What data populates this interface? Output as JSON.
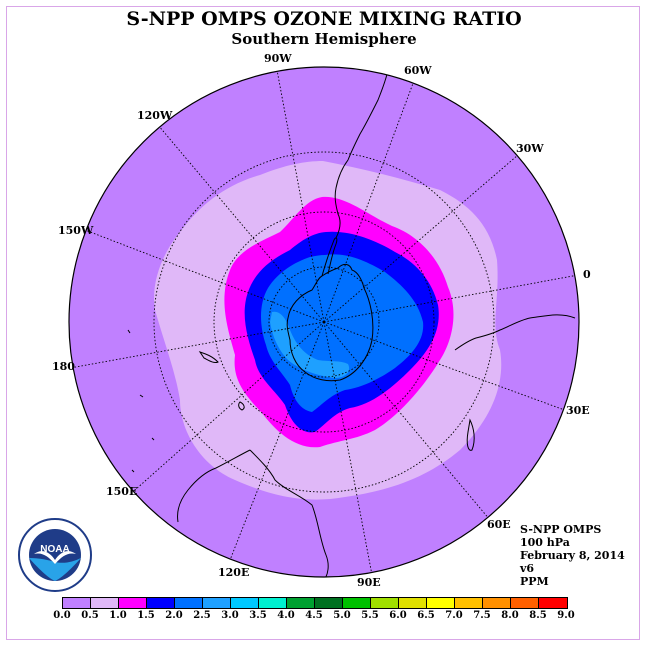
{
  "title": "S-NPP OMPS OZONE MIXING RATIO",
  "subtitle": "Southern Hemisphere",
  "longitude_labels": {
    "lon_90w": "90W",
    "lon_60w": "60W",
    "lon_30w": "30W",
    "lon_0": "0",
    "lon_30e": "30E",
    "lon_60e": "60E",
    "lon_90e": "90E",
    "lon_120e": "120E",
    "lon_150e": "150E",
    "lon_180": "180",
    "lon_150w": "150W",
    "lon_120w": "120W"
  },
  "info": {
    "instrument": "S-NPP OMPS",
    "level": "100 hPa",
    "date": "February 8, 2014",
    "version": "v6",
    "units": "PPM"
  },
  "logo_text": "NOAA",
  "colorbar": {
    "ticks": [
      "0.0",
      "0.5",
      "1.0",
      "1.5",
      "2.0",
      "2.5",
      "3.0",
      "3.5",
      "4.0",
      "4.5",
      "5.0",
      "5.5",
      "6.0",
      "6.5",
      "7.0",
      "7.5",
      "8.0",
      "8.5",
      "9.0"
    ],
    "colors": [
      "#c080ff",
      "#e0b8f8",
      "#ff00ff",
      "#0000ff",
      "#0070ff",
      "#1ea0ff",
      "#00c8ff",
      "#00f0d0",
      "#00a030",
      "#007020",
      "#00c000",
      "#a0e000",
      "#e0e000",
      "#ffff00",
      "#ffc000",
      "#ff9000",
      "#ff6000",
      "#ff0000",
      "#a06040"
    ]
  },
  "map_colors": {
    "outer": "#c080ff",
    "ring_light": "#e0b8f8",
    "ring_magenta": "#ff00ff",
    "ring_blue": "#0000ff",
    "core": "#0070ff",
    "center": "#1ea0ff"
  }
}
